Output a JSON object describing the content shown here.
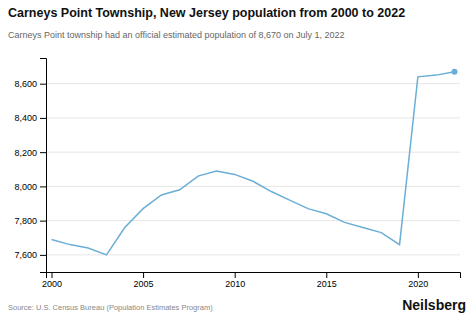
{
  "chart_data": {
    "type": "line",
    "title": "Carneys Point Township, New Jersey population from 2000 to 2022",
    "subtitle": "Carneys Point township had an official estimated population of 8,670 on July 1, 2022",
    "source": "Source: U.S. Census Bureau (Population Estimates Program)",
    "watermark": "Neilsberg",
    "x": [
      2000,
      2001,
      2002,
      2003,
      2004,
      2005,
      2006,
      2007,
      2008,
      2009,
      2010,
      2011,
      2012,
      2013,
      2014,
      2015,
      2016,
      2017,
      2018,
      2019,
      2020,
      2021,
      2022
    ],
    "values": [
      7690,
      7660,
      7640,
      7600,
      7760,
      7870,
      7950,
      7980,
      8060,
      8090,
      8070,
      8030,
      7970,
      7920,
      7870,
      7840,
      7790,
      7760,
      7730,
      7660,
      8640,
      8650,
      8670
    ],
    "color": "#6baed6",
    "xlim": [
      1999.7,
      2022.3
    ],
    "ylim": [
      7500,
      8750
    ],
    "xticks": [
      2000,
      2005,
      2010,
      2015,
      2020
    ],
    "yticks": [
      {
        "value": 7600,
        "label": "7,600"
      },
      {
        "value": 7800,
        "label": "7,800"
      },
      {
        "value": 8000,
        "label": "8,000"
      },
      {
        "value": 8200,
        "label": "8,200"
      },
      {
        "value": 8400,
        "label": "8,400"
      },
      {
        "value": 8600,
        "label": "8,600"
      }
    ],
    "grid": true
  }
}
